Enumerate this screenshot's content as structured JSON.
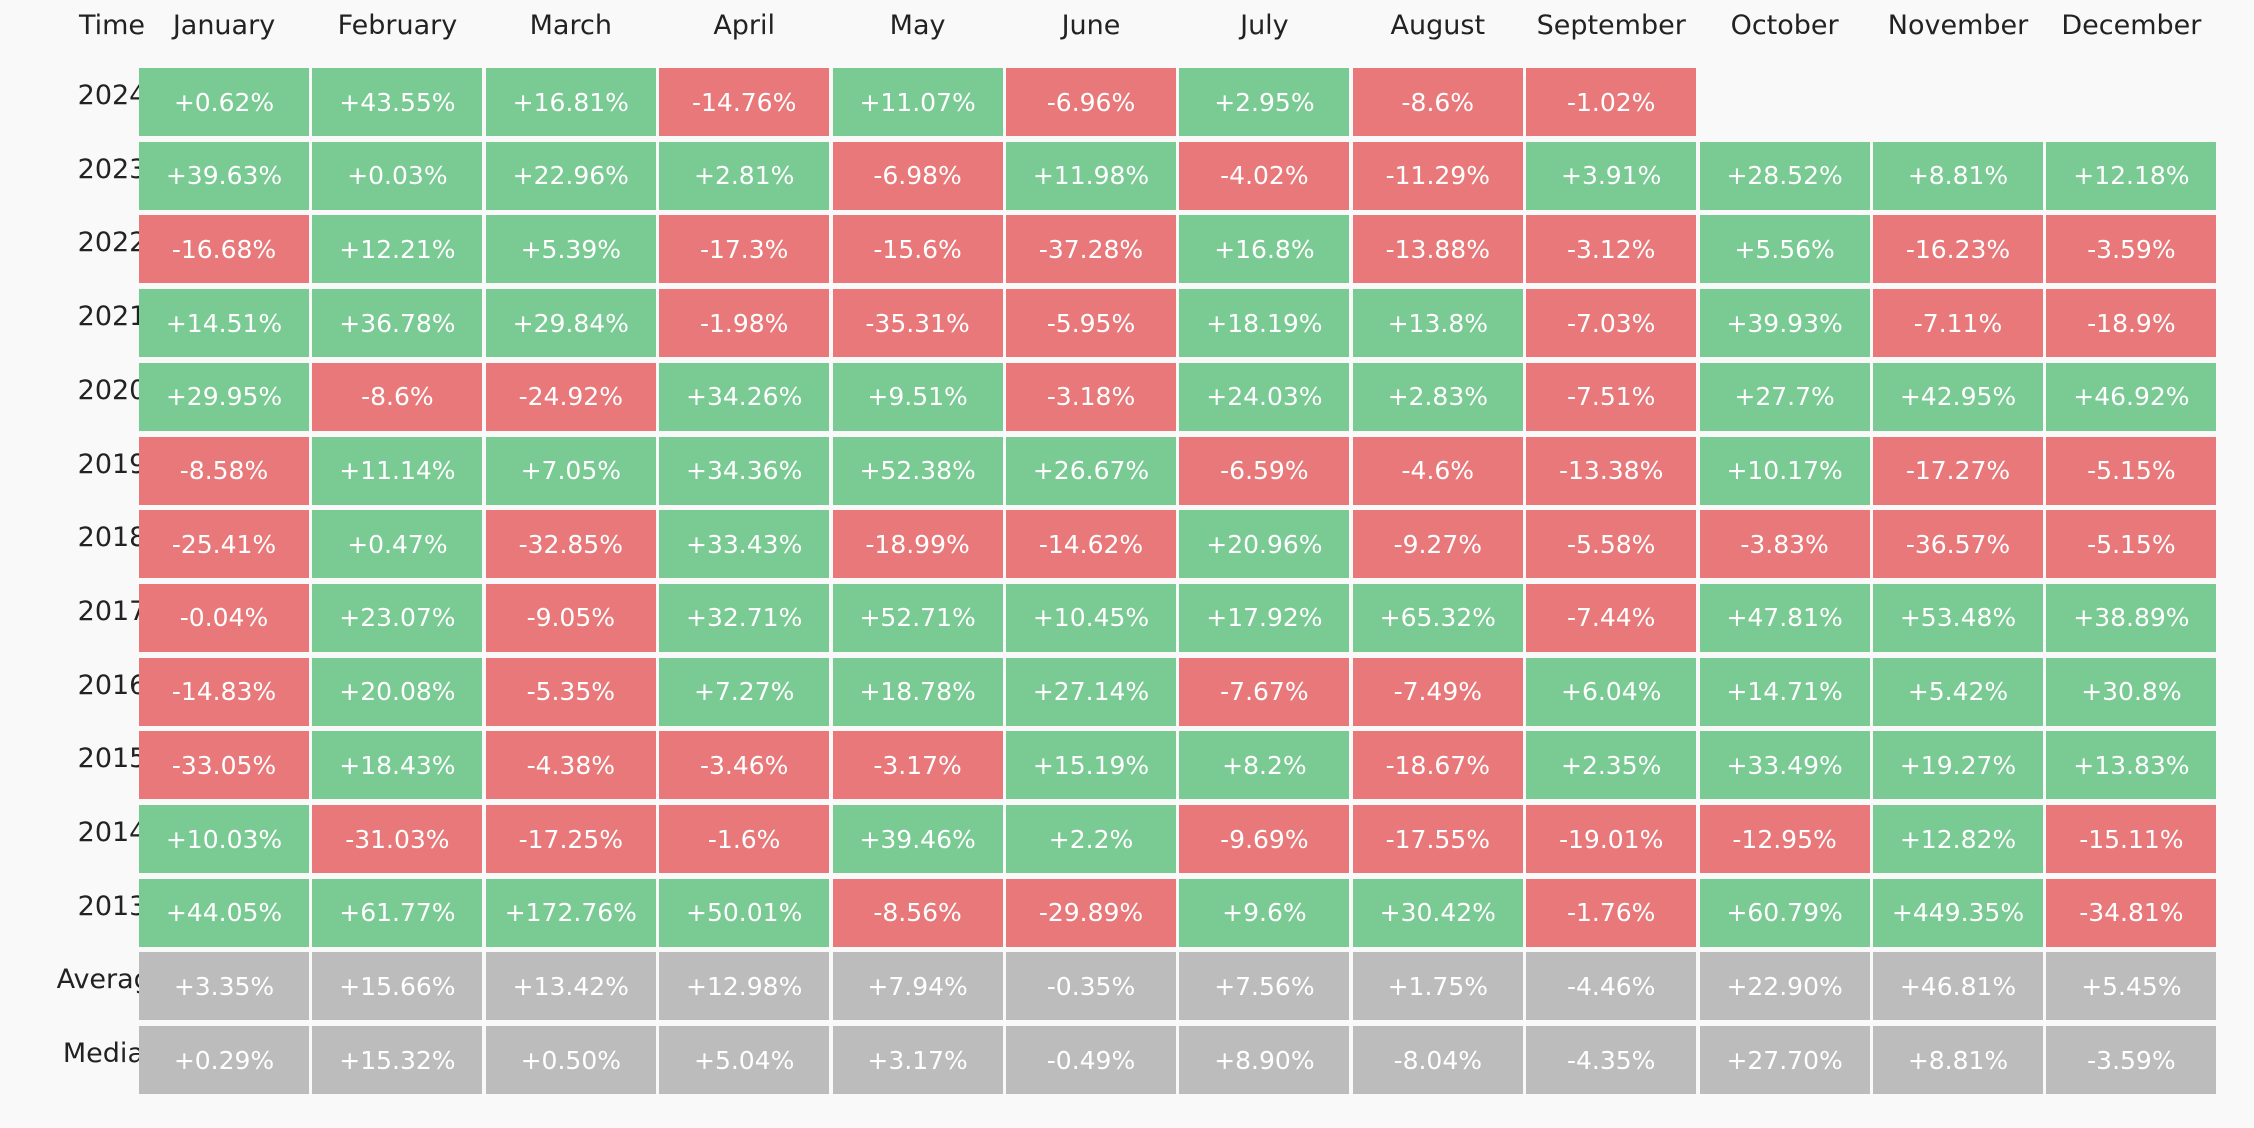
{
  "table": {
    "colors": {
      "positive": "#79ca93",
      "negative": "#e8787a",
      "summary": "#bcbcbc"
    },
    "header": [
      "Time",
      "January",
      "February",
      "March",
      "April",
      "May",
      "June",
      "July",
      "August",
      "September",
      "October",
      "November",
      "December"
    ],
    "rows": [
      {
        "label": "2024",
        "cells": [
          "+0.62%",
          "+43.55%",
          "+16.81%",
          "-14.76%",
          "+11.07%",
          "-6.96%",
          "+2.95%",
          "-8.6%",
          "-1.02%"
        ]
      },
      {
        "label": "2023",
        "cells": [
          "+39.63%",
          "+0.03%",
          "+22.96%",
          "+2.81%",
          "-6.98%",
          "+11.98%",
          "-4.02%",
          "-11.29%",
          "+3.91%",
          "+28.52%",
          "+8.81%",
          "+12.18%"
        ]
      },
      {
        "label": "2022",
        "cells": [
          "-16.68%",
          "+12.21%",
          "+5.39%",
          "-17.3%",
          "-15.6%",
          "-37.28%",
          "+16.8%",
          "-13.88%",
          "-3.12%",
          "+5.56%",
          "-16.23%",
          "-3.59%"
        ]
      },
      {
        "label": "2021",
        "cells": [
          "+14.51%",
          "+36.78%",
          "+29.84%",
          "-1.98%",
          "-35.31%",
          "-5.95%",
          "+18.19%",
          "+13.8%",
          "-7.03%",
          "+39.93%",
          "-7.11%",
          "-18.9%"
        ]
      },
      {
        "label": "2020",
        "cells": [
          "+29.95%",
          "-8.6%",
          "-24.92%",
          "+34.26%",
          "+9.51%",
          "-3.18%",
          "+24.03%",
          "+2.83%",
          "-7.51%",
          "+27.7%",
          "+42.95%",
          "+46.92%"
        ]
      },
      {
        "label": "2019",
        "cells": [
          "-8.58%",
          "+11.14%",
          "+7.05%",
          "+34.36%",
          "+52.38%",
          "+26.67%",
          "-6.59%",
          "-4.6%",
          "-13.38%",
          "+10.17%",
          "-17.27%",
          "-5.15%"
        ]
      },
      {
        "label": "2018",
        "cells": [
          "-25.41%",
          "+0.47%",
          "-32.85%",
          "+33.43%",
          "-18.99%",
          "-14.62%",
          "+20.96%",
          "-9.27%",
          "-5.58%",
          "-3.83%",
          "-36.57%",
          "-5.15%"
        ]
      },
      {
        "label": "2017",
        "cells": [
          "-0.04%",
          "+23.07%",
          "-9.05%",
          "+32.71%",
          "+52.71%",
          "+10.45%",
          "+17.92%",
          "+65.32%",
          "-7.44%",
          "+47.81%",
          "+53.48%",
          "+38.89%"
        ]
      },
      {
        "label": "2016",
        "cells": [
          "-14.83%",
          "+20.08%",
          "-5.35%",
          "+7.27%",
          "+18.78%",
          "+27.14%",
          "-7.67%",
          "-7.49%",
          "+6.04%",
          "+14.71%",
          "+5.42%",
          "+30.8%"
        ]
      },
      {
        "label": "2015",
        "cells": [
          "-33.05%",
          "+18.43%",
          "-4.38%",
          "-3.46%",
          "-3.17%",
          "+15.19%",
          "+8.2%",
          "-18.67%",
          "+2.35%",
          "+33.49%",
          "+19.27%",
          "+13.83%"
        ]
      },
      {
        "label": "2014",
        "cells": [
          "+10.03%",
          "-31.03%",
          "-17.25%",
          "-1.6%",
          "+39.46%",
          "+2.2%",
          "-9.69%",
          "-17.55%",
          "-19.01%",
          "-12.95%",
          "+12.82%",
          "-15.11%"
        ]
      },
      {
        "label": "2013",
        "cells": [
          "+44.05%",
          "+61.77%",
          "+172.76%",
          "+50.01%",
          "-8.56%",
          "-29.89%",
          "+9.6%",
          "+30.42%",
          "-1.76%",
          "+60.79%",
          "+449.35%",
          "-34.81%"
        ]
      }
    ],
    "summary_rows": [
      {
        "label": "Average",
        "cells": [
          "+3.35%",
          "+15.66%",
          "+13.42%",
          "+12.98%",
          "+7.94%",
          "-0.35%",
          "+7.56%",
          "+1.75%",
          "-4.46%",
          "+22.90%",
          "+46.81%",
          "+5.45%"
        ]
      },
      {
        "label": "Median",
        "cells": [
          "+0.29%",
          "+15.32%",
          "+0.50%",
          "+5.04%",
          "+3.17%",
          "-0.49%",
          "+8.90%",
          "-8.04%",
          "-4.35%",
          "+27.70%",
          "+8.81%",
          "-3.59%"
        ]
      }
    ]
  }
}
